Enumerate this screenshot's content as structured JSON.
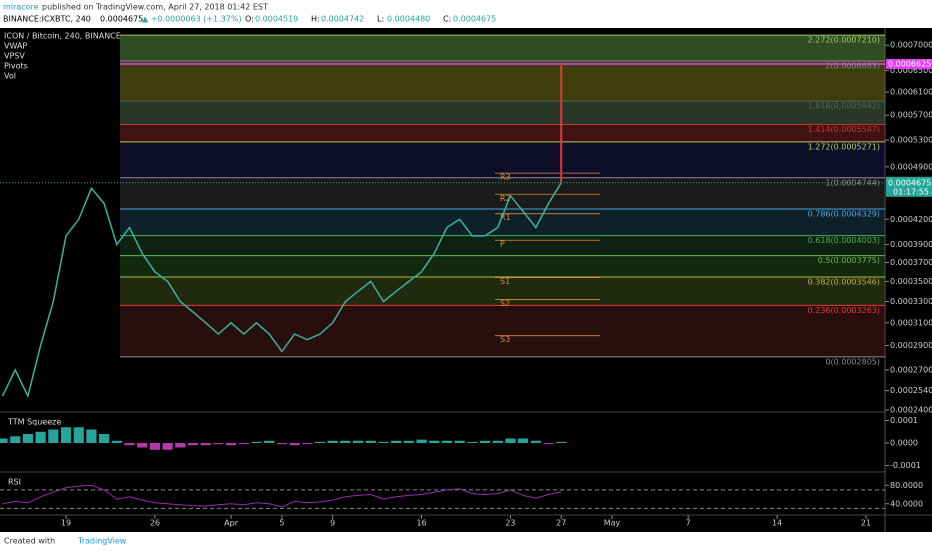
{
  "header": {
    "author": "miracore",
    "published": "published on TradingView.com, April 27, 2018 01:42 EST",
    "symbol": "BINANCE:ICXBTC, 240",
    "last": "0.0004675",
    "change": "▲ +0.0000063 (+1.37%)",
    "quote": [
      {
        "label": "O:",
        "value": "0.0004519"
      },
      {
        "label": "H:",
        "value": "0.0004742"
      },
      {
        "label": "L:",
        "value": "0.0004480"
      },
      {
        "label": "C:",
        "value": "0.0004675"
      }
    ]
  },
  "legend": {
    "title": "ICON / Bitcoin, 240, BINANCE",
    "indicators": [
      "VWAP",
      "VPSV",
      "Pivots",
      "Vol"
    ]
  },
  "chart_data": [
    {
      "type": "line",
      "log_scale": true,
      "grid": false,
      "x": [
        -5,
        -4,
        -3,
        -2,
        -1,
        0,
        1,
        2,
        3,
        4,
        5,
        6,
        7,
        8,
        9,
        10,
        11,
        12,
        13,
        14,
        15,
        16,
        17,
        18,
        19,
        20,
        21,
        22,
        23,
        24,
        25,
        26,
        27,
        28,
        29,
        30,
        31,
        32,
        33,
        34,
        35,
        36,
        37,
        38,
        39
      ],
      "series": [
        {
          "color": "#3bb3a0",
          "values": [
            0.00025,
            0.00027,
            0.00025,
            0.00029,
            0.00033,
            0.0004,
            0.00042,
            0.00046,
            0.00044,
            0.00039,
            0.00041,
            0.00038,
            0.00036,
            0.00035,
            0.00033,
            0.00032,
            0.00031,
            0.0003,
            0.00031,
            0.0003,
            0.00031,
            0.0003,
            0.000285,
            0.0003,
            0.000295,
            0.0003,
            0.00031,
            0.00033,
            0.00034,
            0.00035,
            0.00033,
            0.00034,
            0.00035,
            0.00036,
            0.00038,
            0.00041,
            0.00042,
            0.0004,
            0.0004,
            0.00041,
            0.00045,
            0.00043,
            0.00041,
            0.00044,
            0.0004675
          ]
        }
      ],
      "xlim": [
        -5.2,
        64.5
      ],
      "xticks": [
        {
          "value": 0,
          "label": "19"
        },
        {
          "value": 7,
          "label": "26"
        },
        {
          "value": 13,
          "label": "Apr"
        },
        {
          "value": 17,
          "label": "5"
        },
        {
          "value": 21,
          "label": "9"
        },
        {
          "value": 28,
          "label": "16"
        },
        {
          "value": 35,
          "label": "23"
        },
        {
          "value": 39,
          "label": "27"
        },
        {
          "value": 43,
          "label": "May"
        },
        {
          "value": 49,
          "label": "7"
        },
        {
          "value": 56,
          "label": "14"
        },
        {
          "value": 63,
          "label": "21"
        }
      ],
      "ylim": [
        0.00024,
        0.000732
      ],
      "yticks": [
        {
          "value": 0.0007,
          "label": "0.0007000"
        },
        {
          "value": 0.00065,
          "label": "0.0006500"
        },
        {
          "value": 0.00061,
          "label": "0.0006100"
        },
        {
          "value": 0.00057,
          "label": "0.0005700"
        },
        {
          "value": 0.00053,
          "label": "0.0005300"
        },
        {
          "value": 0.00049,
          "label": "0.0004900"
        },
        {
          "value": 0.00042,
          "label": "0.0004200"
        },
        {
          "value": 0.00039,
          "label": "0.0003900"
        },
        {
          "value": 0.00037,
          "label": "0.0003700"
        },
        {
          "value": 0.00035,
          "label": "0.0003500"
        },
        {
          "value": 0.00033,
          "label": "0.0003300"
        },
        {
          "value": 0.00031,
          "label": "0.0003100"
        },
        {
          "value": 0.00029,
          "label": "0.0002900"
        },
        {
          "value": 0.00027,
          "label": "0.0002700"
        },
        {
          "value": 0.000254,
          "label": "0.0002540"
        },
        {
          "value": 0.00024,
          "label": "0.0002400"
        }
      ],
      "fib_levels": [
        {
          "label": "2.272(0.0007210)",
          "value": 0.000721,
          "color": "#9ccc65",
          "fill": "#6aa84f"
        },
        {
          "label": "2(0.0006683)",
          "value": 0.0006683,
          "color": "#8e8e8e",
          "fill": "#8a8a20"
        },
        {
          "label": "1.618(0.0005942)",
          "value": 0.0005942,
          "color": "#4f6a4f",
          "fill": "#5a7a5a"
        },
        {
          "label": "1.414(0.0005547)",
          "value": 0.0005547,
          "color": "#c0392b",
          "fill": "#8b2a2a"
        },
        {
          "label": "1.272(0.0005271)",
          "value": 0.0005271,
          "color": "#b8cc55",
          "fill": "#20205a"
        },
        {
          "label": "1(0.0004744)",
          "value": 0.0004744,
          "color": "#8e8e8e",
          "fill": "#3a3a3a"
        },
        {
          "label": "0.786(0.0004329)",
          "value": 0.0004329,
          "color": "#4aa3df",
          "fill": "#1f4a5a"
        },
        {
          "label": "0.618(0.0004003)",
          "value": 0.0004003,
          "color": "#4caf50",
          "fill": "#1f4a2a"
        },
        {
          "label": "0.5(0.0003775)",
          "value": 0.0003775,
          "color": "#66bb44",
          "fill": "#2a5a1f"
        },
        {
          "label": "0.382(0.0003546)",
          "value": 0.0003546,
          "color": "#b8b840",
          "fill": "#4a5a1f"
        },
        {
          "label": "0.236(0.0003263)",
          "value": 0.0003263,
          "color": "#e53935",
          "fill": "#5a1f1f"
        },
        {
          "label": "0(0.0002805)",
          "value": 0.0002805,
          "color": "#8e8e8e"
        }
      ],
      "pivots": [
        {
          "label": "R3",
          "value": 0.000481
        },
        {
          "label": "R2",
          "value": 0.000452
        },
        {
          "label": "R1",
          "value": 0.000427
        },
        {
          "label": "P",
          "value": 0.000395
        },
        {
          "label": "S1",
          "value": 0.000354
        },
        {
          "label": "S2",
          "value": 0.000332
        },
        {
          "label": "S3",
          "value": 0.0002985
        }
      ],
      "last_price": {
        "value": 0.0004675,
        "label": "0.0004675"
      },
      "countdown": "01:17:55",
      "target": {
        "value": 0.0006625,
        "label": "0.0006625"
      }
    },
    {
      "type": "bar",
      "title": "TTM Squeeze",
      "colors": {
        "positive": "#26a69a",
        "negative": "#b03aa8"
      },
      "x": [
        -5,
        -4,
        -3,
        -2,
        -1,
        0,
        1,
        2,
        3,
        4,
        5,
        6,
        7,
        8,
        9,
        10,
        11,
        12,
        13,
        14,
        15,
        16,
        17,
        18,
        19,
        20,
        21,
        22,
        23,
        24,
        25,
        26,
        27,
        28,
        29,
        30,
        31,
        32,
        33,
        34,
        35,
        36,
        37,
        38,
        39
      ],
      "values": [
        2e-05,
        3e-05,
        4e-05,
        5e-05,
        6e-05,
        7e-05,
        7e-05,
        6e-05,
        4e-05,
        1e-05,
        -1e-05,
        -2e-05,
        -3e-05,
        -3e-05,
        -2e-05,
        -1e-05,
        -1e-05,
        -5e-06,
        -1e-05,
        -5e-06,
        5e-06,
        1e-05,
        -5e-06,
        -1e-05,
        -5e-06,
        5e-06,
        1e-05,
        1e-05,
        1e-05,
        1e-05,
        5e-06,
        1e-05,
        1e-05,
        1.5e-05,
        1e-05,
        1e-05,
        1e-05,
        5e-06,
        1e-05,
        1e-05,
        2e-05,
        2e-05,
        1e-05,
        -5e-06,
        5e-06
      ],
      "ylim": [
        -0.00012,
        0.00012
      ],
      "yticks": [
        {
          "value": 0.0001,
          "label": "0.0001"
        },
        {
          "value": 0,
          "label": "0.0000"
        },
        {
          "value": -0.0001,
          "label": "-0.0001"
        }
      ]
    },
    {
      "type": "line",
      "title": "RSI",
      "color": "#9c27b0",
      "x": [
        -5,
        -4,
        -3,
        -2,
        -1,
        0,
        1,
        2,
        3,
        4,
        5,
        6,
        7,
        8,
        9,
        10,
        11,
        12,
        13,
        14,
        15,
        16,
        17,
        18,
        19,
        20,
        21,
        22,
        23,
        24,
        25,
        26,
        27,
        28,
        29,
        30,
        31,
        32,
        33,
        34,
        35,
        36,
        37,
        38,
        39
      ],
      "values": [
        40,
        45,
        42,
        55,
        65,
        75,
        78,
        80,
        70,
        50,
        55,
        48,
        42,
        40,
        38,
        36,
        35,
        38,
        40,
        38,
        42,
        40,
        33,
        45,
        42,
        44,
        48,
        55,
        58,
        60,
        50,
        55,
        58,
        60,
        65,
        70,
        72,
        62,
        60,
        62,
        70,
        58,
        52,
        60,
        66
      ],
      "ylim": [
        20,
        100
      ],
      "yticks": [
        {
          "value": 80,
          "label": "80.0000"
        },
        {
          "value": 40,
          "label": "40.0000"
        }
      ],
      "bands": [
        70,
        30
      ]
    }
  ],
  "footer": {
    "created": "Created with",
    "brand": "TradingView"
  }
}
